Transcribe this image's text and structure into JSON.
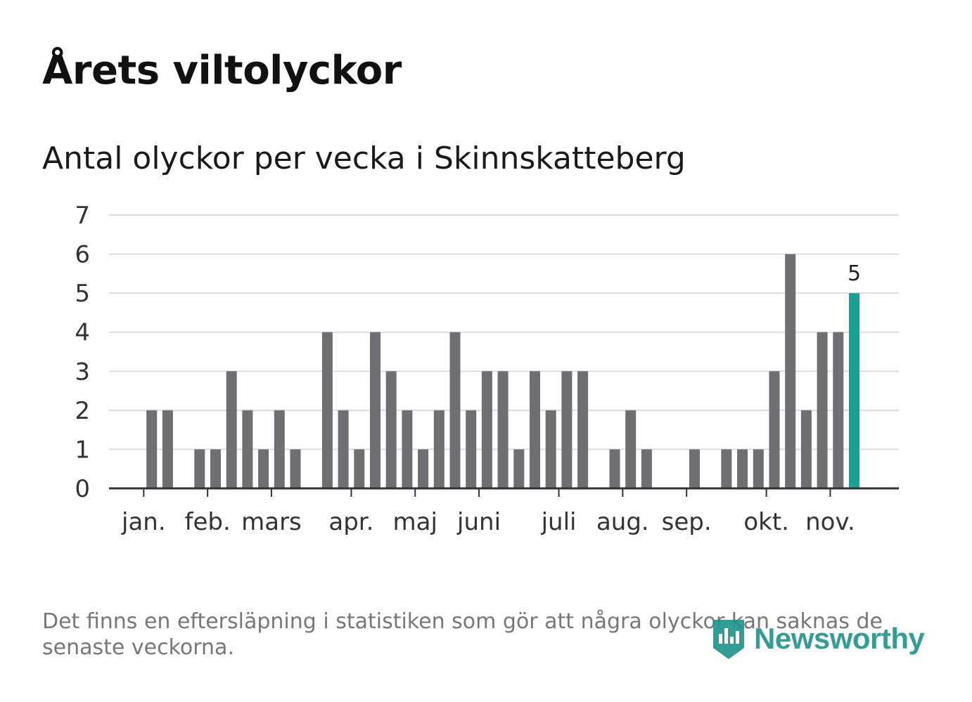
{
  "header": {
    "title": "Årets viltolyckor",
    "subtitle": "Antal olyckor per vecka i Skinnskatteberg"
  },
  "footer": {
    "note": "Det finns en eftersläpning i statistiken som gör att några olyckor kan saknas de senaste veckorna.",
    "brand": "Newsworthy",
    "brand_color": "#21958c"
  },
  "chart_data": {
    "type": "bar",
    "title": "Antal olyckor per vecka i Skinnskatteberg",
    "xlabel": "",
    "ylabel": "",
    "ylim": [
      0,
      7
    ],
    "yticks": [
      0,
      1,
      2,
      3,
      4,
      5,
      6,
      7
    ],
    "grid": true,
    "bar_color": "#6f6e73",
    "highlight_color": "#17a297",
    "weeks": [
      1,
      2,
      3,
      4,
      5,
      6,
      7,
      8,
      9,
      10,
      11,
      12,
      13,
      14,
      15,
      16,
      17,
      18,
      19,
      20,
      21,
      22,
      23,
      24,
      25,
      26,
      27,
      28,
      29,
      30,
      31,
      32,
      33,
      34,
      35,
      36,
      37,
      38,
      39,
      40,
      41,
      42,
      43,
      44,
      45,
      46
    ],
    "values": [
      0,
      2,
      2,
      0,
      1,
      1,
      3,
      2,
      1,
      2,
      1,
      0,
      4,
      2,
      1,
      4,
      3,
      2,
      1,
      2,
      4,
      2,
      3,
      3,
      1,
      3,
      2,
      3,
      3,
      0,
      1,
      2,
      1,
      0,
      0,
      1,
      0,
      1,
      1,
      1,
      3,
      6,
      2,
      4,
      4,
      5
    ],
    "highlight_index": 45,
    "highlight_label": "5",
    "month_ticks": [
      {
        "label": "jan.",
        "week": 1.5
      },
      {
        "label": "feb.",
        "week": 5.5
      },
      {
        "label": "mars",
        "week": 9.5
      },
      {
        "label": "apr.",
        "week": 14.5
      },
      {
        "label": "maj",
        "week": 18.5
      },
      {
        "label": "juni",
        "week": 22.5
      },
      {
        "label": "juli",
        "week": 27.5
      },
      {
        "label": "aug.",
        "week": 31.5
      },
      {
        "label": "sep.",
        "week": 35.5
      },
      {
        "label": "okt.",
        "week": 40.5
      },
      {
        "label": "nov.",
        "week": 44.5
      }
    ]
  }
}
